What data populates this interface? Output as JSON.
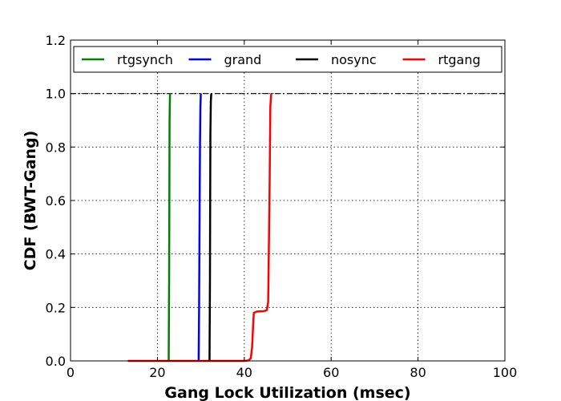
{
  "chart_data": {
    "type": "line",
    "title": "",
    "xlabel": "Gang Lock Utilization (msec)",
    "ylabel": "CDF (BWT-Gang)",
    "xlim": [
      0,
      100
    ],
    "ylim": [
      0,
      1.2
    ],
    "xticks": [
      "0",
      "20",
      "40",
      "60",
      "80",
      "100"
    ],
    "yticks": [
      "0.0",
      "0.2",
      "0.4",
      "0.6",
      "0.8",
      "1.0",
      "1.2"
    ],
    "grid": true,
    "legend_position": "top",
    "reference_line": {
      "y": 1.0,
      "style": "dash-dot",
      "color": "#000000"
    },
    "series": [
      {
        "name": "rtgsynch",
        "color": "#008000",
        "x": [
          22.6,
          22.7,
          22.75,
          22.8,
          22.9
        ],
        "y": [
          0.0,
          0.3,
          0.6,
          0.9,
          1.0
        ]
      },
      {
        "name": "grand",
        "color": "#0000ff",
        "x": [
          29.5,
          29.6,
          29.7,
          29.8,
          29.9,
          30.0
        ],
        "y": [
          0.0,
          0.2,
          0.5,
          0.8,
          0.95,
          1.0
        ]
      },
      {
        "name": "nosync",
        "color": "#000000",
        "x": [
          32.0,
          32.1,
          32.15,
          32.2,
          32.3,
          32.4
        ],
        "y": [
          0.0,
          0.3,
          0.6,
          0.85,
          0.97,
          1.0
        ]
      },
      {
        "name": "rtgang",
        "color": "#ff0000",
        "x": [
          13.2,
          20,
          30,
          40,
          41.0,
          41.5,
          41.8,
          42.0,
          42.2,
          43.0,
          44.5,
          45.2,
          45.5,
          45.8,
          46.0,
          46.2
        ],
        "y": [
          0.0,
          0.0,
          0.0,
          0.0,
          0.002,
          0.01,
          0.05,
          0.12,
          0.18,
          0.185,
          0.186,
          0.19,
          0.22,
          0.6,
          0.95,
          1.0
        ]
      }
    ]
  }
}
